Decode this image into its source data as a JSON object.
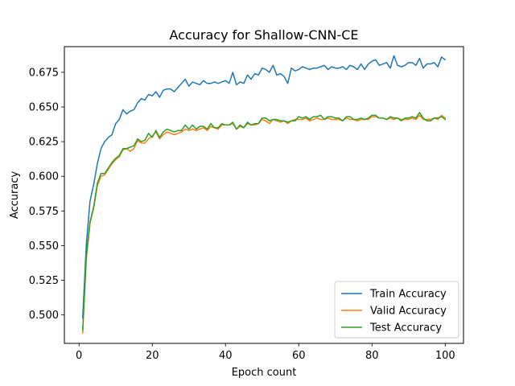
{
  "chart_data": {
    "type": "line",
    "title": "Accuracy for Shallow-CNN-CE",
    "xlabel": "Epoch count",
    "ylabel": "Accuracy",
    "xlim": [
      -4.0,
      105.0
    ],
    "ylim": [
      0.4795,
      0.6935
    ],
    "xticks": [
      0,
      20,
      40,
      60,
      80,
      100
    ],
    "yticks": [
      0.5,
      0.525,
      0.55,
      0.575,
      0.6,
      0.625,
      0.65,
      0.675
    ],
    "xtick_labels": [
      "0",
      "20",
      "40",
      "60",
      "80",
      "100"
    ],
    "ytick_labels": [
      "0.500",
      "0.525",
      "0.550",
      "0.575",
      "0.600",
      "0.625",
      "0.650",
      "0.675"
    ],
    "grid": false,
    "legend_position": "lower-right",
    "x": [
      1,
      2,
      3,
      4,
      5,
      6,
      7,
      8,
      9,
      10,
      11,
      12,
      13,
      14,
      15,
      16,
      17,
      18,
      19,
      20,
      21,
      22,
      23,
      24,
      25,
      26,
      27,
      28,
      29,
      30,
      31,
      32,
      33,
      34,
      35,
      36,
      37,
      38,
      39,
      40,
      41,
      42,
      43,
      44,
      45,
      46,
      47,
      48,
      49,
      50,
      51,
      52,
      53,
      54,
      55,
      56,
      57,
      58,
      59,
      60,
      61,
      62,
      63,
      64,
      65,
      66,
      67,
      68,
      69,
      70,
      71,
      72,
      73,
      74,
      75,
      76,
      77,
      78,
      79,
      80,
      81,
      82,
      83,
      84,
      85,
      86,
      87,
      88,
      89,
      90,
      91,
      92,
      93,
      94,
      95,
      96,
      97,
      98,
      99,
      100
    ],
    "series": [
      {
        "name": "Train Accuracy",
        "color": "#1f77b4",
        "values": [
          0.498,
          0.551,
          0.582,
          0.594,
          0.609,
          0.62,
          0.625,
          0.628,
          0.63,
          0.638,
          0.641,
          0.648,
          0.645,
          0.647,
          0.648,
          0.653,
          0.656,
          0.655,
          0.659,
          0.658,
          0.661,
          0.657,
          0.662,
          0.663,
          0.663,
          0.661,
          0.664,
          0.667,
          0.67,
          0.665,
          0.668,
          0.667,
          0.666,
          0.669,
          0.667,
          0.667,
          0.668,
          0.667,
          0.668,
          0.669,
          0.667,
          0.675,
          0.666,
          0.668,
          0.667,
          0.673,
          0.67,
          0.674,
          0.673,
          0.678,
          0.677,
          0.675,
          0.68,
          0.673,
          0.674,
          0.672,
          0.667,
          0.678,
          0.676,
          0.677,
          0.679,
          0.678,
          0.677,
          0.678,
          0.678,
          0.679,
          0.68,
          0.677,
          0.679,
          0.678,
          0.678,
          0.679,
          0.677,
          0.68,
          0.679,
          0.677,
          0.681,
          0.677,
          0.681,
          0.683,
          0.684,
          0.68,
          0.681,
          0.682,
          0.678,
          0.687,
          0.68,
          0.679,
          0.68,
          0.682,
          0.682,
          0.68,
          0.685,
          0.678,
          0.681,
          0.681,
          0.682,
          0.679,
          0.686,
          0.684
        ]
      },
      {
        "name": "Valid Accuracy",
        "color": "#ff7f0e",
        "values": [
          0.487,
          0.54,
          0.566,
          0.577,
          0.593,
          0.6,
          0.601,
          0.605,
          0.609,
          0.612,
          0.614,
          0.619,
          0.62,
          0.618,
          0.62,
          0.626,
          0.624,
          0.624,
          0.627,
          0.629,
          0.632,
          0.627,
          0.63,
          0.632,
          0.631,
          0.63,
          0.631,
          0.632,
          0.634,
          0.633,
          0.634,
          0.633,
          0.634,
          0.635,
          0.633,
          0.636,
          0.635,
          0.634,
          0.637,
          0.637,
          0.637,
          0.638,
          0.634,
          0.636,
          0.635,
          0.638,
          0.637,
          0.637,
          0.638,
          0.641,
          0.64,
          0.638,
          0.641,
          0.64,
          0.639,
          0.64,
          0.638,
          0.64,
          0.641,
          0.641,
          0.641,
          0.642,
          0.64,
          0.641,
          0.642,
          0.641,
          0.641,
          0.642,
          0.641,
          0.641,
          0.641,
          0.64,
          0.642,
          0.641,
          0.641,
          0.64,
          0.641,
          0.641,
          0.641,
          0.643,
          0.643,
          0.642,
          0.642,
          0.641,
          0.642,
          0.641,
          0.642,
          0.641,
          0.641,
          0.641,
          0.642,
          0.641,
          0.644,
          0.641,
          0.641,
          0.641,
          0.642,
          0.641,
          0.644,
          0.642
        ]
      },
      {
        "name": "Test Accuracy",
        "color": "#2ca02c",
        "values": [
          0.489,
          0.543,
          0.567,
          0.578,
          0.595,
          0.602,
          0.602,
          0.606,
          0.61,
          0.613,
          0.615,
          0.62,
          0.62,
          0.621,
          0.622,
          0.627,
          0.625,
          0.626,
          0.631,
          0.628,
          0.633,
          0.628,
          0.632,
          0.634,
          0.633,
          0.632,
          0.633,
          0.633,
          0.637,
          0.634,
          0.637,
          0.634,
          0.636,
          0.636,
          0.634,
          0.638,
          0.635,
          0.635,
          0.638,
          0.637,
          0.637,
          0.639,
          0.634,
          0.637,
          0.635,
          0.639,
          0.637,
          0.638,
          0.638,
          0.642,
          0.642,
          0.64,
          0.641,
          0.641,
          0.64,
          0.64,
          0.639,
          0.64,
          0.64,
          0.643,
          0.642,
          0.643,
          0.641,
          0.643,
          0.643,
          0.644,
          0.641,
          0.643,
          0.643,
          0.642,
          0.642,
          0.64,
          0.643,
          0.643,
          0.641,
          0.641,
          0.642,
          0.641,
          0.642,
          0.644,
          0.644,
          0.642,
          0.642,
          0.641,
          0.643,
          0.642,
          0.642,
          0.64,
          0.642,
          0.642,
          0.643,
          0.642,
          0.646,
          0.642,
          0.64,
          0.64,
          0.642,
          0.642,
          0.643,
          0.641
        ]
      }
    ]
  }
}
